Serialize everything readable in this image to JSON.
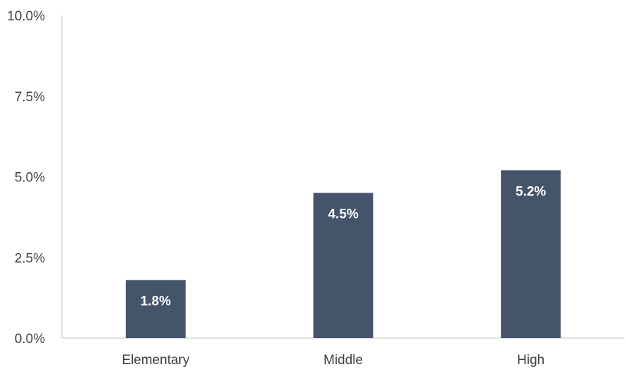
{
  "chart_data": {
    "type": "bar",
    "categories": [
      "Elementary",
      "Middle",
      "High"
    ],
    "values": [
      1.8,
      4.5,
      5.2
    ],
    "data_labels": [
      "1.8%",
      "4.5%",
      "5.2%"
    ],
    "title": "",
    "xlabel": "",
    "ylabel": "",
    "ylim": [
      0,
      10
    ],
    "yticks": [
      0,
      2.5,
      5,
      7.5,
      10
    ],
    "ytick_labels": [
      "0.0%",
      "2.5%",
      "5.0%",
      "7.5%",
      "10.0%"
    ],
    "grid": false,
    "legend": "none",
    "bar_color": "#44546a",
    "axis_color": "#d9d9d9",
    "text_color": "#404040"
  }
}
